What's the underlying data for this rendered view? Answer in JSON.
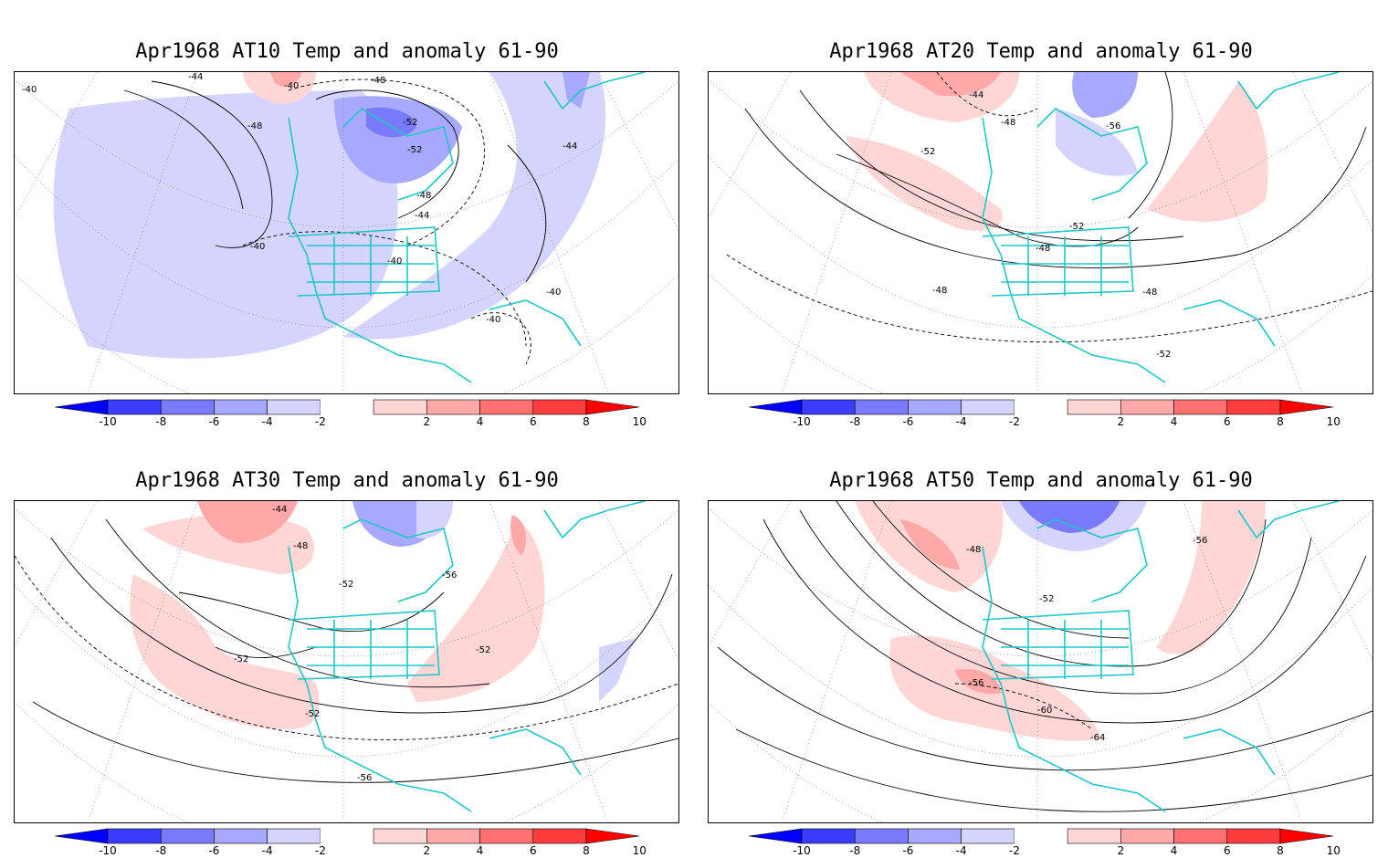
{
  "colorbar": {
    "ticks": [
      "-10",
      "-8",
      "-6",
      "-4",
      "-2",
      "2",
      "4",
      "6",
      "8",
      "10"
    ],
    "colors": [
      "#0000ff",
      "#3c3cff",
      "#7a7aff",
      "#a8a8ff",
      "#d4d4ff",
      "#ffffff",
      "#ffd6d6",
      "#ffa8a8",
      "#ff7070",
      "#ff3c3c",
      "#ff0000"
    ]
  },
  "style": {
    "coast_color": "#1fc7c7",
    "grid_color": "#888888"
  },
  "panels": [
    {
      "title": "Apr1968 AT10 Temp and anomaly 61-90",
      "labels": [
        "-40",
        "-44",
        "-48",
        "-52",
        "-48",
        "-52",
        "-40",
        "-44",
        "-48",
        "-44",
        "-40",
        "-40",
        "-40",
        "-40"
      ]
    },
    {
      "title": "Apr1968 AT20 Temp and anomaly 61-90",
      "labels": [
        "-44",
        "-48",
        "-56",
        "-52",
        "-52",
        "-48",
        "-48",
        "-48",
        "-52"
      ]
    },
    {
      "title": "Apr1968 AT30 Temp and anomaly 61-90",
      "labels": [
        "-44",
        "-48",
        "-52",
        "-56",
        "-52",
        "-52",
        "-52",
        "-56"
      ]
    },
    {
      "title": "Apr1968 AT50 Temp and anomaly 61-90",
      "labels": [
        "-48",
        "-56",
        "-52",
        "-56",
        "-60",
        "-64"
      ]
    }
  ]
}
